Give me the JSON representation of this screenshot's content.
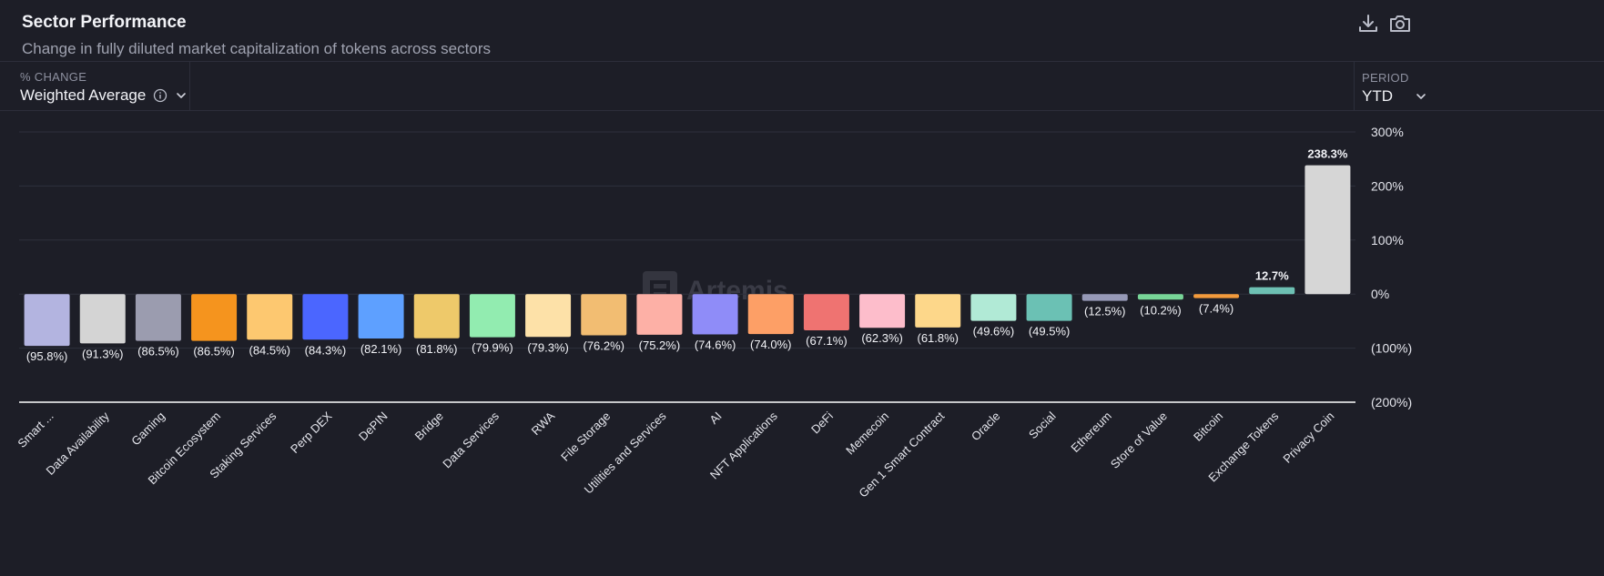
{
  "header": {
    "title": "Sector Performance",
    "subtitle": "Change in fully diluted market capitalization of tokens across sectors",
    "download_icon": "download-icon",
    "camera_icon": "camera-icon"
  },
  "controls": {
    "change": {
      "label": "% CHANGE",
      "value": "Weighted Average",
      "info_icon": "info-icon",
      "chevron_icon": "chevron-down-icon"
    },
    "period": {
      "label": "PERIOD",
      "value": "YTD",
      "chevron_icon": "chevron-down-icon"
    }
  },
  "watermark": "Artemis",
  "colors": {
    "background": "#1d1e27",
    "gridline": "#2e303c",
    "baseline": "#ffffff"
  },
  "chart_data": {
    "type": "bar",
    "categories": [
      "Smart ...",
      "Data Availability",
      "Gaming",
      "Bitcoin Ecosystem",
      "Staking Services",
      "Perp DEX",
      "DePIN",
      "Bridge",
      "Data Services",
      "RWA",
      "File Storage",
      "Utilities and Services",
      "AI",
      "NFT Applications",
      "DeFi",
      "Memecoin",
      "Gen 1 Smart Contract",
      "Oracle",
      "Social",
      "Ethereum",
      "Store of Value",
      "Bitcoin",
      "Exchange Tokens",
      "Privacy Coin"
    ],
    "values": [
      -95.8,
      -91.3,
      -86.5,
      -86.5,
      -84.5,
      -84.3,
      -82.1,
      -81.8,
      -79.9,
      -79.3,
      -76.2,
      -75.2,
      -74.6,
      -74.0,
      -67.1,
      -62.3,
      -61.8,
      -49.6,
      -49.5,
      -12.5,
      -10.2,
      -7.4,
      12.7,
      238.3
    ],
    "value_labels": [
      "(95.8%)",
      "(91.3%)",
      "(86.5%)",
      "(86.5%)",
      "(84.5%)",
      "(84.3%)",
      "(82.1%)",
      "(81.8%)",
      "(79.9%)",
      "(79.3%)",
      "(76.2%)",
      "(75.2%)",
      "(74.6%)",
      "(74.0%)",
      "(67.1%)",
      "(62.3%)",
      "(61.8%)",
      "(49.6%)",
      "(49.5%)",
      "(12.5%)",
      "(10.2%)",
      "(7.4%)",
      "12.7%",
      "238.3%"
    ],
    "bar_colors": [
      "#b3b4e0",
      "#d4d4d4",
      "#9b9caf",
      "#f5941e",
      "#fdc870",
      "#4b66ff",
      "#5ea0ff",
      "#eec96a",
      "#92ecb0",
      "#fde1a8",
      "#f2bd72",
      "#fdb0a6",
      "#8f8cf8",
      "#fd9f66",
      "#ef7371",
      "#fdbdcb",
      "#fdd78a",
      "#b1ead6",
      "#6bc1b4",
      "#9699b7",
      "#77d597",
      "#f39a3b",
      "#6dc0b3",
      "#d6d6d6"
    ],
    "y_ticks": [
      300,
      200,
      100,
      0,
      -100,
      -200
    ],
    "y_tick_labels": [
      "300%",
      "200%",
      "100%",
      "0%",
      "(100%)",
      "(200%)"
    ],
    "ylim": [
      -200,
      300
    ],
    "xlabel": "",
    "ylabel": "",
    "grid": true,
    "y_axis_position": "right"
  }
}
